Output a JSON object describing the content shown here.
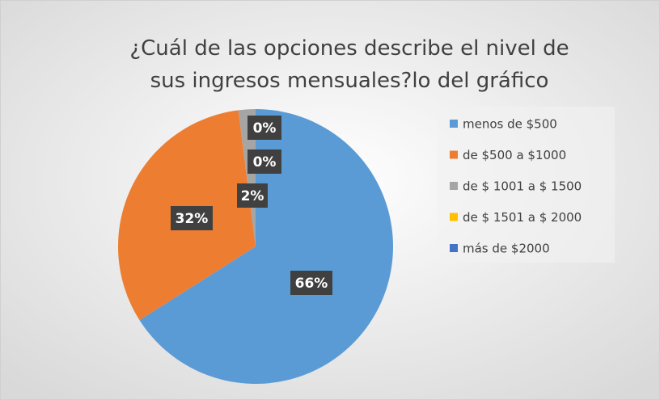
{
  "chart_data": {
    "type": "pie",
    "title": "¿Cuál de las opciones describe el nivel de sus ingresos mensuales?lo del gráfico",
    "categories": [
      "menos de $500",
      "de $500 a $1000",
      "de $ 1001 a $ 1500",
      "de $ 1501 a $ 2000",
      "más de $2000"
    ],
    "values": [
      66,
      32,
      2,
      0,
      0
    ],
    "value_labels": [
      "66%",
      "32%",
      "2%",
      "0%",
      "0%"
    ],
    "colors": [
      "#5b9bd5",
      "#ed7d31",
      "#a5a5a5",
      "#ffc000",
      "#4472c4"
    ],
    "legend": "right"
  }
}
